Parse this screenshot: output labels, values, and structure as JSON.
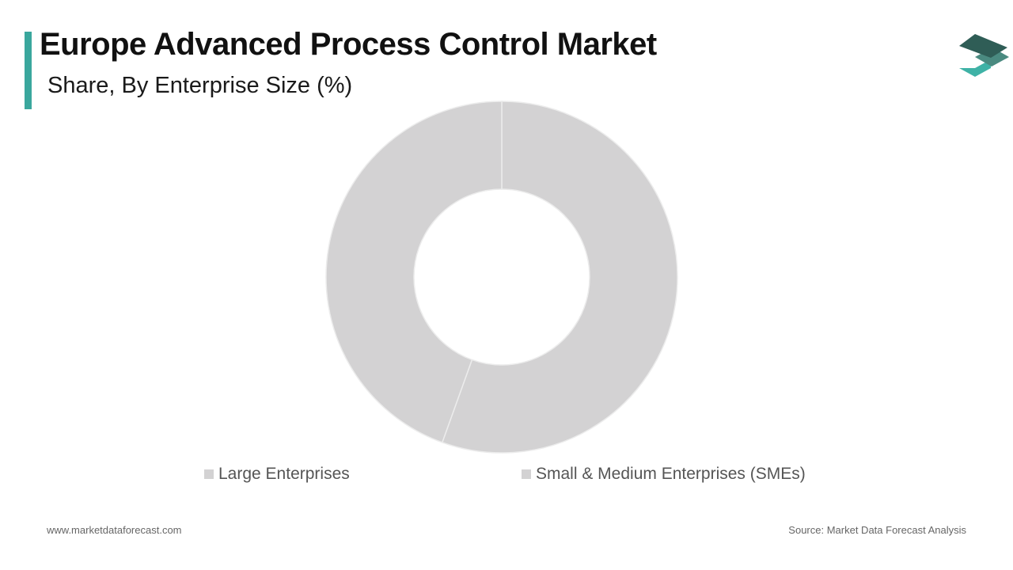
{
  "header": {
    "title": "Europe Advanced Process Control Market",
    "subtitle": "Share, By Enterprise Size (%)"
  },
  "colors": {
    "accent": "#3aa79d",
    "slice": "#d3d2d3",
    "slice_border": "#ececec",
    "logo_top": "#2f5d56",
    "logo_mid": "#4a8a80",
    "logo_bottom": "#3fb2a6"
  },
  "logo": {
    "icon": "layers-stack-icon"
  },
  "chart_data": {
    "type": "pie",
    "donut": true,
    "title": "Europe Advanced Process Control Market",
    "subtitle": "Share, By Enterprise Size (%)",
    "categories": [
      "Large Enterprises",
      "Small & Medium Enterprises (SMEs)"
    ],
    "values": [
      44.5,
      55.5
    ],
    "colors": [
      "#d3d2d3",
      "#d3d2d3"
    ],
    "legend": "bottom"
  },
  "legend": {
    "items": [
      {
        "label": "Large Enterprises",
        "color": "#d3d2d3"
      },
      {
        "label": "Small & Medium Enterprises (SMEs)",
        "color": "#d3d2d3"
      }
    ]
  },
  "footer": {
    "website": "www.marketdataforecast.com",
    "source": "Source: Market Data Forecast Analysis"
  }
}
